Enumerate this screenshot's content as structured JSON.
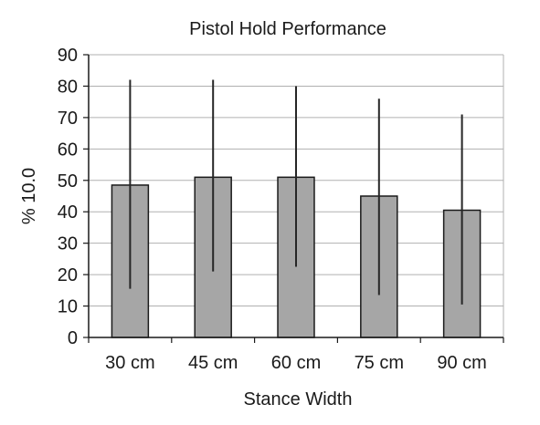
{
  "chart_data": {
    "type": "bar",
    "title": "Pistol Hold Performance",
    "xlabel": "Stance Width",
    "ylabel": "% 10.0",
    "categories": [
      "30 cm",
      "45 cm",
      "60 cm",
      "75 cm",
      "90 cm"
    ],
    "values": [
      48.5,
      51.0,
      51.0,
      45.0,
      40.5
    ],
    "error_bars": {
      "low": [
        15.5,
        21.0,
        22.5,
        13.5,
        10.5
      ],
      "high": [
        82.0,
        82.0,
        80.0,
        76.0,
        71.0
      ]
    },
    "ylim": [
      0,
      90
    ],
    "yticks": [
      "0",
      "10",
      "20",
      "30",
      "40",
      "50",
      "60",
      "70",
      "80",
      "90"
    ],
    "grid": true,
    "legend": "none",
    "colors": {
      "bar_fill": "#a6a6a6",
      "bar_stroke": "#1a1a1a",
      "gridline": "#b0b0b0",
      "error_bar": "#262626"
    }
  }
}
